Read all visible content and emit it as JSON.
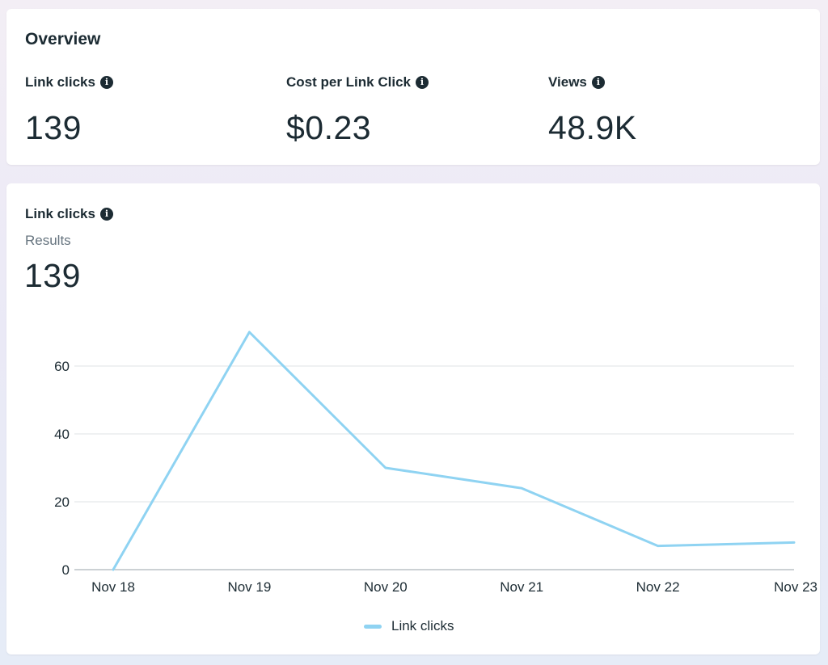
{
  "overview": {
    "title": "Overview",
    "metrics": [
      {
        "label": "Link clicks",
        "value": "139",
        "icon": "info-icon"
      },
      {
        "label": "Cost per Link Click",
        "value": "$0.23",
        "icon": "info-icon"
      },
      {
        "label": "Views",
        "value": "48.9K",
        "icon": "info-icon"
      }
    ]
  },
  "chart_card": {
    "title": "Link clicks",
    "subtitle": "Results",
    "total": "139"
  },
  "chart_data": {
    "type": "line",
    "title": "Link clicks",
    "categories": [
      "Nov 18",
      "Nov 19",
      "Nov 20",
      "Nov 21",
      "Nov 22",
      "Nov 23"
    ],
    "series": [
      {
        "name": "Link clicks",
        "values": [
          0,
          70,
          30,
          24,
          7,
          8
        ],
        "color": "#8fd3f2"
      }
    ],
    "yticks": [
      0,
      20,
      40,
      60
    ],
    "ylim": [
      0,
      70
    ],
    "grid": true,
    "legend": "bottom-center"
  }
}
